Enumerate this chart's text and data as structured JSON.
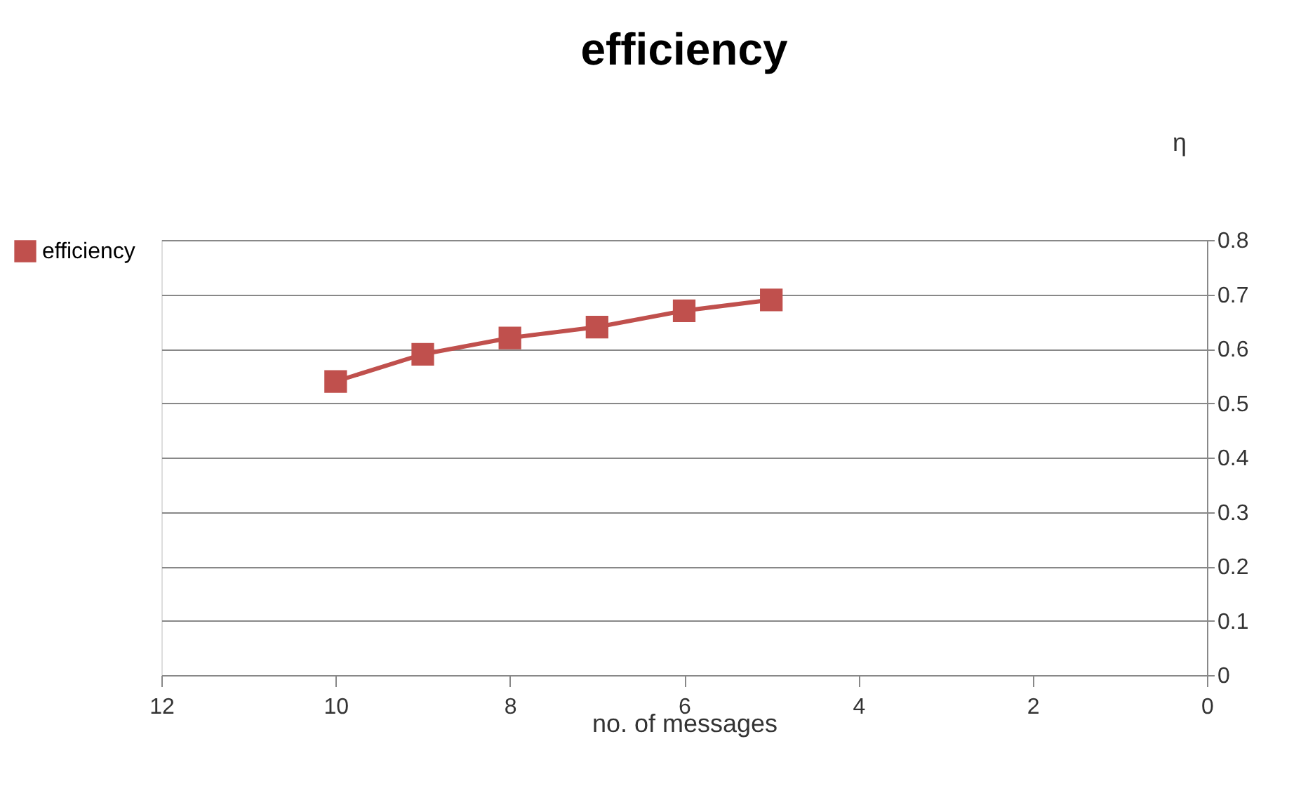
{
  "chart_data": {
    "type": "line",
    "title": "efficiency",
    "xlabel": "no. of messages",
    "ylabel": "η",
    "x": [
      10,
      9,
      8,
      7,
      6,
      5
    ],
    "series": [
      {
        "name": "efficiency",
        "color": "#c0504d",
        "values": [
          0.54,
          0.59,
          0.62,
          0.64,
          0.67,
          0.69
        ]
      }
    ],
    "xlim": [
      12,
      0
    ],
    "xticks": [
      12,
      10,
      8,
      6,
      4,
      2,
      0
    ],
    "ylim": [
      0,
      0.8
    ],
    "yticks": [
      0,
      0.1,
      0.2,
      0.3,
      0.4,
      0.5,
      0.6,
      0.7,
      0.8
    ],
    "grid": "y",
    "legend": "left",
    "marker": "square",
    "line_style": "solid"
  }
}
